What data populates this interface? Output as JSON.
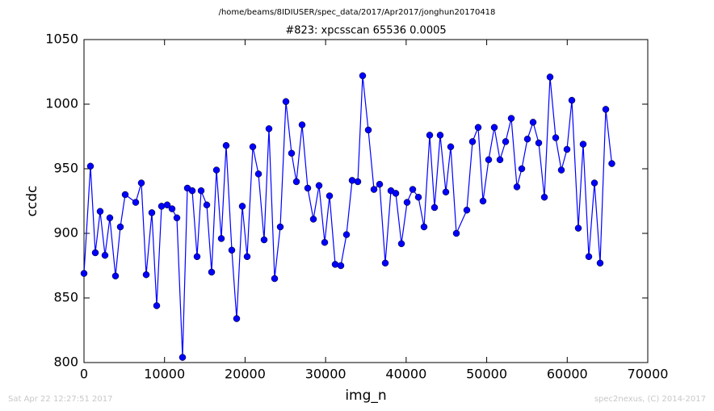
{
  "chart_data": {
    "type": "line",
    "suptitle": "/home/beams/8IDIUSER/spec_data/2017/Apr2017/jonghun20170418",
    "title": "#823: xpcsscan 65536 0.0005",
    "xlabel": "img_n",
    "ylabel": "ccdc",
    "x": [
      0,
      802,
      1404,
      2006,
      2607,
      3209,
      3911,
      4513,
      5115,
      6418,
      7120,
      7722,
      8424,
      9026,
      9628,
      10330,
      10931,
      11533,
      12235,
      12837,
      13439,
      14040,
      14542,
      15244,
      15845,
      16447,
      17049,
      17650,
      18352,
      18954,
      19656,
      20258,
      20960,
      21662,
      22364,
      22966,
      23668,
      24370,
      25072,
      25774,
      26376,
      27078,
      27779,
      28481,
      29183,
      29885,
      30487,
      31189,
      31891,
      32593,
      33295,
      33997,
      34599,
      35301,
      36003,
      36705,
      37407,
      38109,
      38711,
      39413,
      40115,
      40817,
      41519,
      42221,
      42923,
      43524,
      44226,
      44928,
      45530,
      46232,
      47536,
      48238,
      48940,
      49542,
      50244,
      50946,
      51648,
      52350,
      53052,
      53754,
      54355,
      55057,
      55759,
      56461,
      57163,
      57865,
      58567,
      59269,
      59971,
      60573,
      61375,
      61977,
      62679,
      63381,
      64083,
      64785,
      65536
    ],
    "series": [
      {
        "color": "#0000ff",
        "values": [
          869,
          952,
          885,
          917,
          883,
          912,
          867,
          905,
          930,
          924,
          939,
          868,
          916,
          844,
          921,
          922,
          919,
          912,
          804,
          935,
          933,
          882,
          933,
          922,
          870,
          949,
          896,
          968,
          887,
          834,
          921,
          882,
          967,
          946,
          895,
          981,
          865,
          905,
          1002,
          962,
          940,
          984,
          935,
          911,
          937,
          893,
          929,
          876,
          875,
          899,
          941,
          940,
          1022,
          980,
          934,
          938,
          877,
          933,
          931,
          892,
          924,
          934,
          928,
          905,
          976,
          920,
          976,
          932,
          967,
          900,
          918,
          971,
          982,
          925,
          957,
          982,
          957,
          971,
          989,
          936,
          950,
          973,
          986,
          970,
          928,
          1021,
          974,
          949,
          965,
          1003,
          904,
          969,
          882,
          939,
          877,
          996,
          954
        ]
      }
    ],
    "xlim": [
      0,
      70000
    ],
    "xticks": [
      0,
      10000,
      20000,
      30000,
      40000,
      50000,
      60000,
      70000
    ],
    "ylim": [
      800,
      1050
    ],
    "yticks": [
      800,
      850,
      900,
      950,
      1000,
      1050
    ],
    "grid": false
  },
  "footer": {
    "left": "Sat Apr 22 12:27:51 2017",
    "right": "spec2nexus, (C) 2014-2017"
  }
}
